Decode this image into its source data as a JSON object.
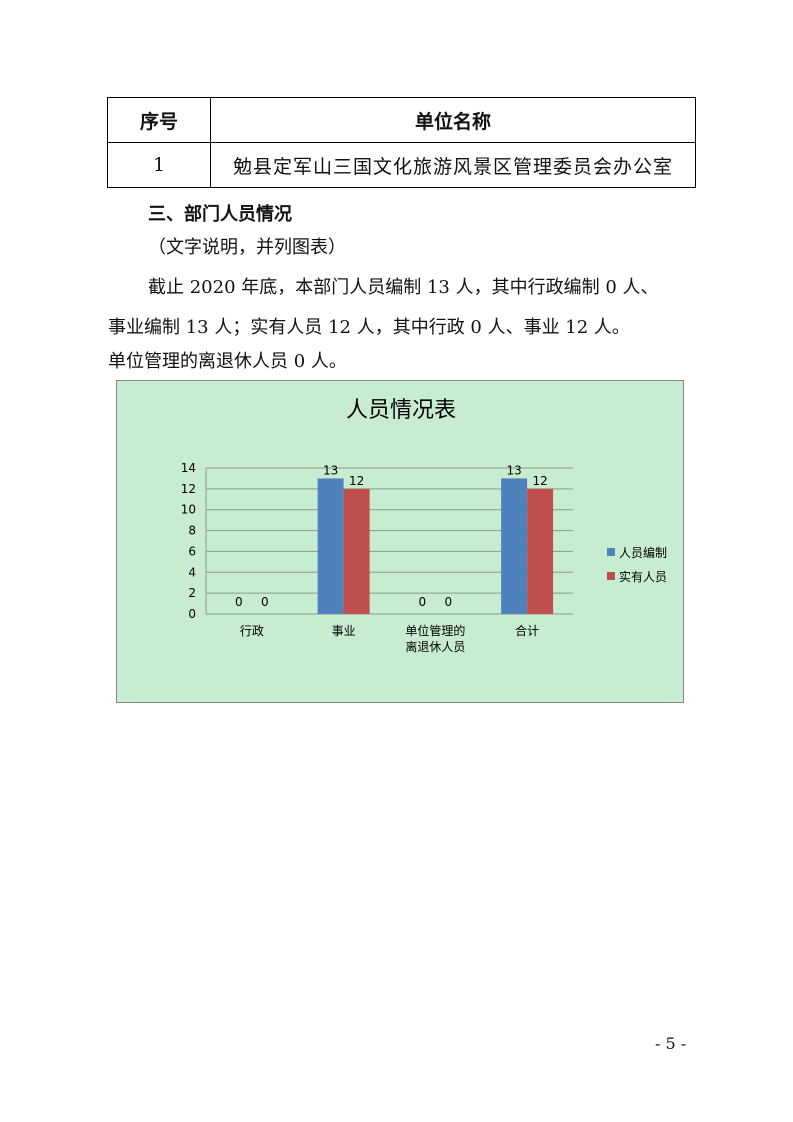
{
  "table": {
    "headers": [
      "序号",
      "单位名称"
    ],
    "rows": [
      [
        "1",
        "勉县定军山三国文化旅游风景区管理委员会办公室"
      ]
    ]
  },
  "section_heading": "三、部门人员情况",
  "note": "（文字说明，并列图表）",
  "paragraph": [
    "截止 2020 年底，本部门人员编制 13 人，其中行政编制 0 人、",
    "事业编制 13 人；实有人员 12 人，其中行政 0 人、事业 12 人。",
    "单位管理的离退休人员 0 人。"
  ],
  "page_number": "- 5 -",
  "chart_data": {
    "type": "bar",
    "title": "人员情况表",
    "categories": [
      "行政",
      "事业",
      "单位管理的\n离退休人员",
      "合计"
    ],
    "series": [
      {
        "name": "人员编制",
        "values": [
          0,
          13,
          0,
          13
        ],
        "color": "#4f81bd"
      },
      {
        "name": "实有人员",
        "values": [
          0,
          12,
          0,
          12
        ],
        "color": "#c0504d"
      }
    ],
    "ylim": [
      0,
      14
    ],
    "yticks": [
      0,
      2,
      4,
      6,
      8,
      10,
      12,
      14
    ],
    "grid": true,
    "legend": "right",
    "background": "#c8ecd0"
  }
}
